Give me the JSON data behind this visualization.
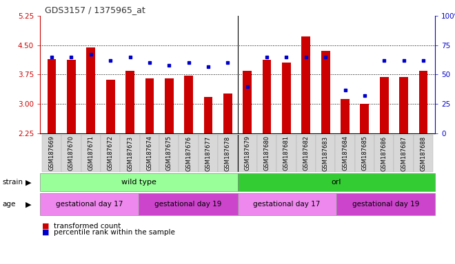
{
  "title": "GDS3157 / 1375965_at",
  "samples": [
    "GSM187669",
    "GSM187670",
    "GSM187671",
    "GSM187672",
    "GSM187673",
    "GSM187674",
    "GSM187675",
    "GSM187676",
    "GSM187677",
    "GSM187678",
    "GSM187679",
    "GSM187680",
    "GSM187681",
    "GSM187682",
    "GSM187683",
    "GSM187684",
    "GSM187685",
    "GSM187686",
    "GSM187687",
    "GSM187688"
  ],
  "transformed_count": [
    4.15,
    4.12,
    4.45,
    3.62,
    3.85,
    3.65,
    3.65,
    3.72,
    3.18,
    3.27,
    3.85,
    4.12,
    4.05,
    4.72,
    4.35,
    3.12,
    3.0,
    3.68,
    3.68,
    3.85
  ],
  "percentile_rank": [
    65,
    65,
    67,
    62,
    65,
    60,
    58,
    60,
    57,
    60,
    40,
    65,
    65,
    65,
    65,
    37,
    32,
    62,
    62,
    62
  ],
  "y_min": 2.25,
  "y_max": 5.25,
  "y_ticks": [
    2.25,
    3.0,
    3.75,
    4.5,
    5.25
  ],
  "right_y_ticks": [
    0,
    25,
    50,
    75,
    100
  ],
  "right_y_labels": [
    "0",
    "25",
    "50",
    "75",
    "100%"
  ],
  "bar_color": "#cc0000",
  "marker_color": "#0000cc",
  "left_tick_color": "#cc0000",
  "right_tick_color": "#0000cc",
  "strain_groups": [
    {
      "label": "wild type",
      "start": 0,
      "end": 10,
      "color": "#99ff99"
    },
    {
      "label": "orl",
      "start": 10,
      "end": 20,
      "color": "#33cc33"
    }
  ],
  "age_groups": [
    {
      "label": "gestational day 17",
      "start": 0,
      "end": 5,
      "color": "#ee88ee"
    },
    {
      "label": "gestational day 19",
      "start": 5,
      "end": 10,
      "color": "#cc44cc"
    },
    {
      "label": "gestational day 17",
      "start": 10,
      "end": 15,
      "color": "#ee88ee"
    },
    {
      "label": "gestational day 19",
      "start": 15,
      "end": 20,
      "color": "#cc44cc"
    }
  ]
}
